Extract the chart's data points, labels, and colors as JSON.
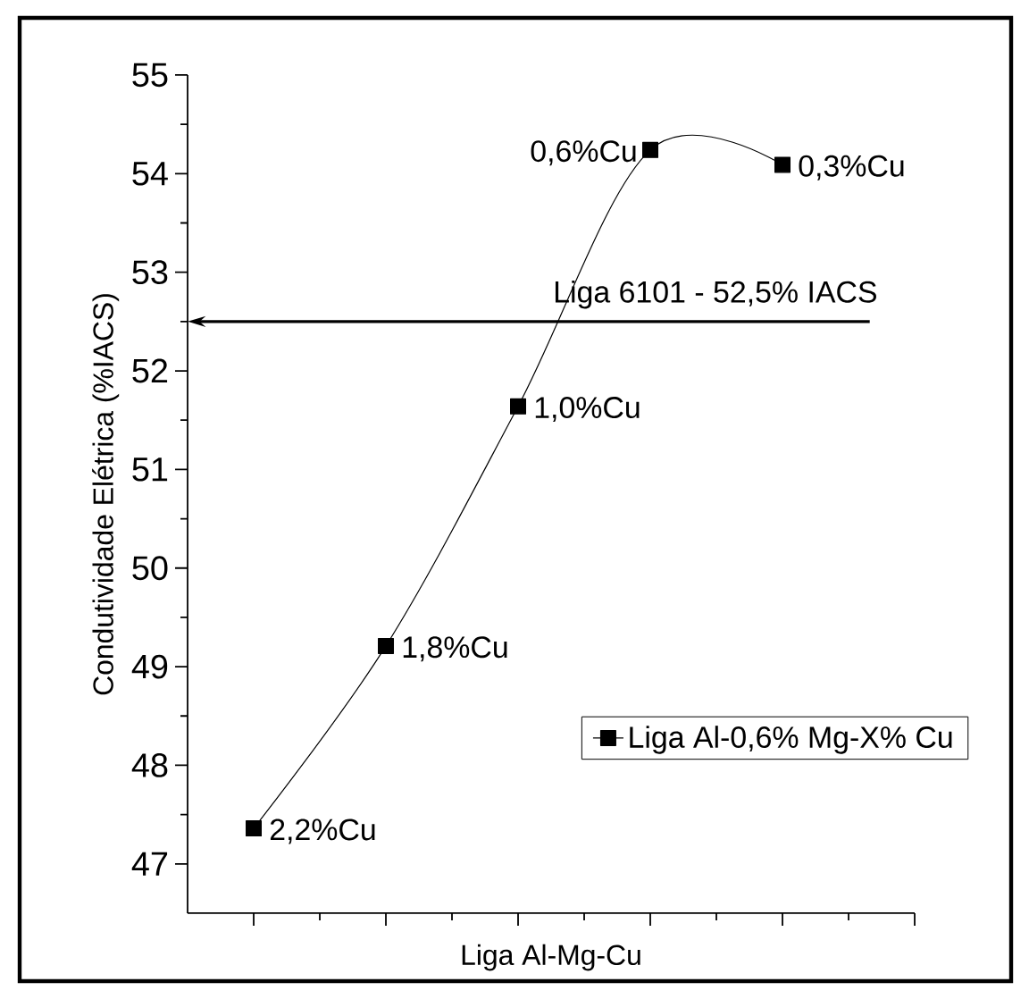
{
  "chart_data": {
    "type": "line",
    "xlabel": "Liga Al-Mg-Cu",
    "ylabel": "Condutividade Elétrica (%IACS)",
    "categories": [
      null,
      null,
      null,
      null,
      null
    ],
    "series": [
      {
        "name": "Liga Al-0,6% Mg-X% Cu",
        "color": "#000000",
        "values": [
          47.36,
          49.21,
          51.64,
          54.24,
          54.09
        ]
      }
    ],
    "ylim": [
      46.5,
      55
    ],
    "yticks": [
      47,
      48,
      49,
      50,
      51,
      52,
      53,
      54,
      55
    ],
    "marker": "square",
    "line_style": "solid",
    "legend": "bottom right",
    "grid": false,
    "tick_labels": "y",
    "ref_lines": [
      {
        "axis": "y",
        "value": 52.5,
        "label": "Liga 6101 - 52,5% IACS",
        "color": "#000000"
      }
    ],
    "annotations": [
      "2,2%Cu",
      "1,8%Cu",
      "1,0%Cu",
      "0,6%Cu",
      "0,3%Cu"
    ]
  }
}
